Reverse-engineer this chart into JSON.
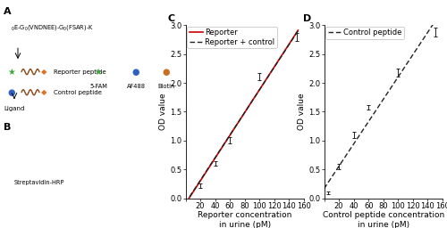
{
  "panel_C": {
    "xlabel_line1": "Reporter concentration",
    "xlabel_line2": "in urine (pM)",
    "ylabel": "OD value",
    "xlim": [
      0,
      160
    ],
    "ylim": [
      0,
      3.0
    ],
    "xticks": [
      0,
      20,
      40,
      60,
      80,
      100,
      120,
      140,
      160
    ],
    "yticks": [
      0.0,
      0.5,
      1.0,
      1.5,
      2.0,
      2.5,
      3.0
    ],
    "reporter_x": [
      0,
      10,
      20,
      40,
      60,
      100,
      150
    ],
    "reporter_y": [
      0.04,
      0.1,
      0.22,
      0.6,
      1.0,
      2.1,
      2.8
    ],
    "reporter_color": "#cc0000",
    "reporter_label": "Reporter",
    "reporter_control_x": [
      0,
      10,
      20,
      40,
      60,
      100,
      150
    ],
    "reporter_control_y": [
      0.04,
      0.11,
      0.23,
      0.61,
      1.01,
      2.11,
      2.78
    ],
    "reporter_control_color": "#222222",
    "reporter_control_label": "Reporter + control",
    "errorbar_x": [
      20,
      40,
      60,
      100,
      150
    ],
    "errorbar_y": [
      0.225,
      0.605,
      1.005,
      2.105,
      2.79
    ],
    "errorbar_err": [
      0.04,
      0.04,
      0.05,
      0.06,
      0.07
    ]
  },
  "panel_D": {
    "xlabel_line1": "Control peptide concentration",
    "xlabel_line2": "in urine (pM)",
    "ylabel": "OD value",
    "xlim": [
      0,
      160
    ],
    "ylim": [
      0,
      3.0
    ],
    "xticks": [
      0,
      20,
      40,
      60,
      80,
      100,
      120,
      140,
      160
    ],
    "yticks": [
      0.0,
      0.5,
      1.0,
      1.5,
      2.0,
      2.5,
      3.0
    ],
    "control_x": [
      0,
      5,
      20,
      40,
      60,
      100,
      150
    ],
    "control_y": [
      0.04,
      0.1,
      0.55,
      1.1,
      1.58,
      2.18,
      2.88
    ],
    "control_color": "#222222",
    "control_label": "Control peptide",
    "errorbar_x": [
      5,
      20,
      40,
      60,
      100,
      150
    ],
    "errorbar_y": [
      0.1,
      0.55,
      1.1,
      1.58,
      2.18,
      2.88
    ],
    "errorbar_err": [
      0.025,
      0.04,
      0.05,
      0.04,
      0.07,
      0.08
    ]
  },
  "label_fontsize": 8,
  "tick_fontsize": 6,
  "axis_label_fontsize": 6.5,
  "legend_fontsize": 6,
  "background_color": "#ffffff"
}
